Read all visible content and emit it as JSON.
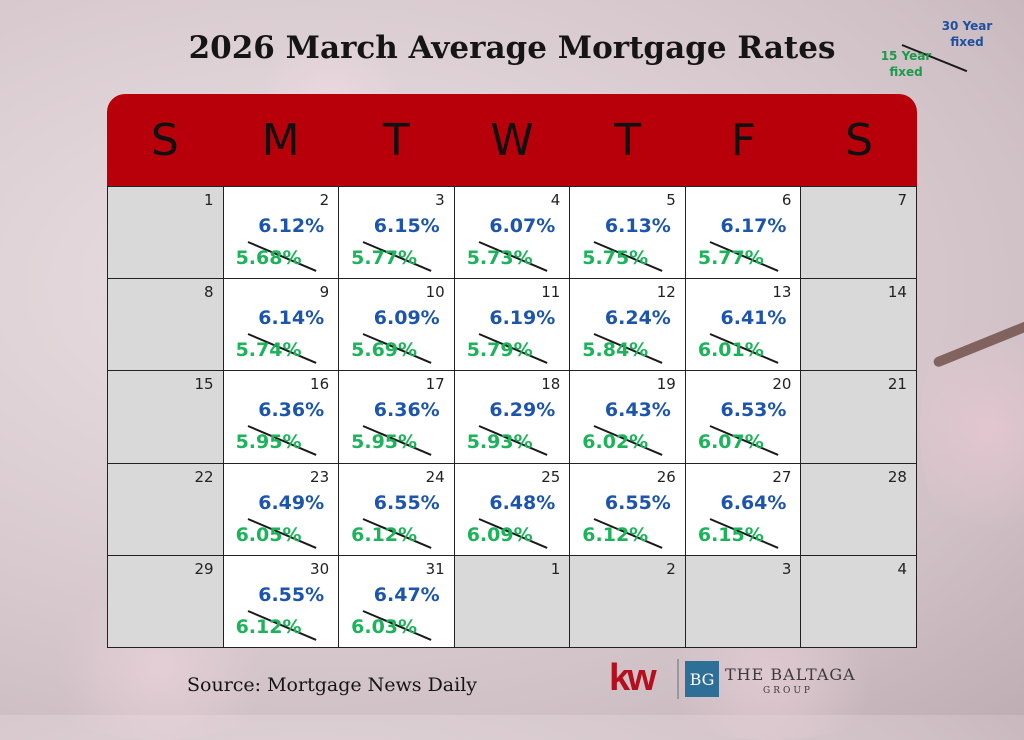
{
  "title": "2026 March Average Mortgage Rates",
  "legend": {
    "thirty": "30 Year fixed",
    "fifteen": "15 Year fixed"
  },
  "days": [
    "S",
    "M",
    "T",
    "W",
    "T",
    "F",
    "S"
  ],
  "weeks": [
    [
      {
        "d": "1"
      },
      {
        "d": "2",
        "r30": "6.12%",
        "r15": "5.68%"
      },
      {
        "d": "3",
        "r30": "6.15%",
        "r15": "5.77%"
      },
      {
        "d": "4",
        "r30": "6.07%",
        "r15": "5.73%"
      },
      {
        "d": "5",
        "r30": "6.13%",
        "r15": "5.75%"
      },
      {
        "d": "6",
        "r30": "6.17%",
        "r15": "5.77%"
      },
      {
        "d": "7"
      }
    ],
    [
      {
        "d": "8"
      },
      {
        "d": "9",
        "r30": "6.14%",
        "r15": "5.74%"
      },
      {
        "d": "10",
        "r30": "6.09%",
        "r15": "5.69%"
      },
      {
        "d": "11",
        "r30": "6.19%",
        "r15": "5.79%"
      },
      {
        "d": "12",
        "r30": "6.24%",
        "r15": "5.84%"
      },
      {
        "d": "13",
        "r30": "6.41%",
        "r15": "6.01%"
      },
      {
        "d": "14"
      }
    ],
    [
      {
        "d": "15"
      },
      {
        "d": "16",
        "r30": "6.36%",
        "r15": "5.95%"
      },
      {
        "d": "17",
        "r30": "6.36%",
        "r15": "5.95%"
      },
      {
        "d": "18",
        "r30": "6.29%",
        "r15": "5.93%"
      },
      {
        "d": "19",
        "r30": "6.43%",
        "r15": "6.02%"
      },
      {
        "d": "20",
        "r30": "6.53%",
        "r15": "6.07%"
      },
      {
        "d": "21"
      }
    ],
    [
      {
        "d": "22"
      },
      {
        "d": "23",
        "r30": "6.49%",
        "r15": "6.05%"
      },
      {
        "d": "24",
        "r30": "6.55%",
        "r15": "6.12%"
      },
      {
        "d": "25",
        "r30": "6.48%",
        "r15": "6.09%"
      },
      {
        "d": "26",
        "r30": "6.55%",
        "r15": "6.12%"
      },
      {
        "d": "27",
        "r30": "6.64%",
        "r15": "6.15%"
      },
      {
        "d": "28"
      }
    ],
    [
      {
        "d": "29"
      },
      {
        "d": "30",
        "r30": "6.55%",
        "r15": "6.12%"
      },
      {
        "d": "31",
        "r30": "6.47%",
        "r15": "6.03%"
      },
      {
        "d": "1"
      },
      {
        "d": "2"
      },
      {
        "d": "3"
      },
      {
        "d": "4"
      }
    ]
  ],
  "source": "Source: Mortgage News Daily",
  "logos": {
    "kw": "kw",
    "bg": "BG",
    "baltaga": "THE BALTAGA",
    "group": "GROUP"
  },
  "colors": {
    "header": "#b8000a",
    "thirty": "#1d55ad",
    "fifteen": "#1cb35a"
  }
}
